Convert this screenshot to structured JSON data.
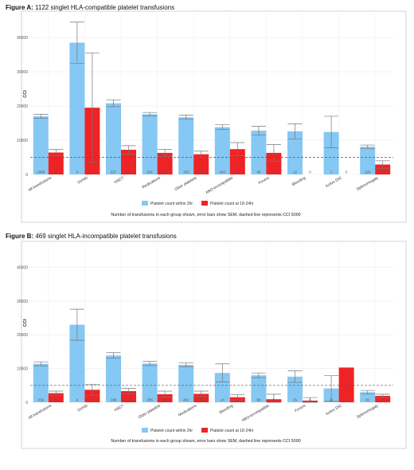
{
  "colors": {
    "within_2hr": "#86c8f4",
    "at_18_24hr": "#ee2326",
    "panel_border": "#c8c8c8",
    "grid": "#ececec",
    "dashed_line": "#555555",
    "error_bar": "#777777",
    "count_text": "#555555"
  },
  "chart_data": [
    {
      "figure_label": "Figure A:",
      "title": "1122 singlet HLA-compatible platelet transfusions",
      "type": "bar",
      "ylabel": "CCI",
      "ylim": [
        0,
        47000
      ],
      "yticks": [
        0,
        10000,
        20000,
        30000,
        40000
      ],
      "yticklabels": [
        "0",
        "10000",
        "20000",
        "30000",
        "40000"
      ],
      "reference_line": 5000,
      "categories": [
        "All transfusions",
        "GVHD",
        "HSCT",
        "Medications",
        "Older platelets",
        "ABO-incompatible",
        "Fevers",
        "Bleeding",
        "Active DIC",
        "Splenomegaly"
      ],
      "series": [
        {
          "name": "Platelet count within 2hr",
          "values": [
            17000,
            38500,
            20800,
            17600,
            16700,
            13800,
            12800,
            12600,
            12400,
            8100
          ],
          "sem": [
            600,
            6000,
            1000,
            500,
            600,
            700,
            1300,
            2200,
            4600,
            500
          ],
          "counts": [
            "1089",
            "4",
            "327",
            "931",
            "753",
            "410",
            "48",
            "12",
            "7",
            "220"
          ]
        },
        {
          "name": "Platelet count at 18-24hr",
          "values": [
            6400,
            19500,
            7200,
            6300,
            5900,
            7400,
            6300,
            0,
            0,
            2900
          ],
          "sem": [
            900,
            16000,
            1200,
            1000,
            900,
            1900,
            2400,
            0,
            0,
            1100
          ],
          "counts": [
            "81",
            "2",
            "38",
            "66",
            "71",
            "20",
            "6",
            "0",
            "0",
            "26"
          ]
        }
      ],
      "legend": [
        "Platelet count within 2hr",
        "Platelet count at 18-24hr"
      ],
      "legend_position": "bottom",
      "caption": "Number of transfusions in each group shown, error bars show SEM, dashed line represents CCI 5000"
    },
    {
      "figure_label": "Figure B:",
      "title": "469 singlet HLA-incompatible platelet transfusions",
      "type": "bar",
      "ylabel": "CCI",
      "ylim": [
        0,
        47000
      ],
      "yticks": [
        0,
        10000,
        20000,
        30000,
        40000
      ],
      "yticklabels": [
        "0",
        "10000",
        "20000",
        "30000",
        "40000"
      ],
      "reference_line": 5000,
      "categories": [
        "All transfusions",
        "GVHD",
        "HSCT",
        "Older platelets",
        "Medications",
        "Bleeding",
        "ABO-incompatible",
        "Fevers",
        "Active DIC",
        "Splenomegaly"
      ],
      "series": [
        {
          "name": "Platelet count within 2hr",
          "values": [
            11400,
            23000,
            13900,
            11500,
            11100,
            8700,
            8000,
            7600,
            4100,
            3000
          ],
          "sem": [
            600,
            4600,
            800,
            600,
            600,
            2700,
            700,
            1700,
            3800,
            500
          ],
          "counts": [
            "439",
            "4",
            "180",
            "285",
            "402",
            "14",
            "98",
            "25",
            "11",
            "81"
          ]
        },
        {
          "name": "Platelet count at 18-24hr",
          "values": [
            2700,
            3700,
            3300,
            2400,
            2500,
            1500,
            900,
            500,
            10300,
            1900
          ],
          "sem": [
            600,
            1600,
            800,
            900,
            800,
            800,
            1500,
            900,
            0,
            500
          ],
          "counts": [
            "59",
            "2",
            "43",
            "30",
            "61",
            "2",
            "5",
            "6",
            "1",
            "8"
          ]
        }
      ],
      "legend": [
        "Platelet count within 2hr",
        "Platelet count at 18-24hr"
      ],
      "legend_position": "bottom",
      "caption": "Number of transfusions in each group shown, error bars show SEM, dashed line represents CCI 5000"
    }
  ]
}
